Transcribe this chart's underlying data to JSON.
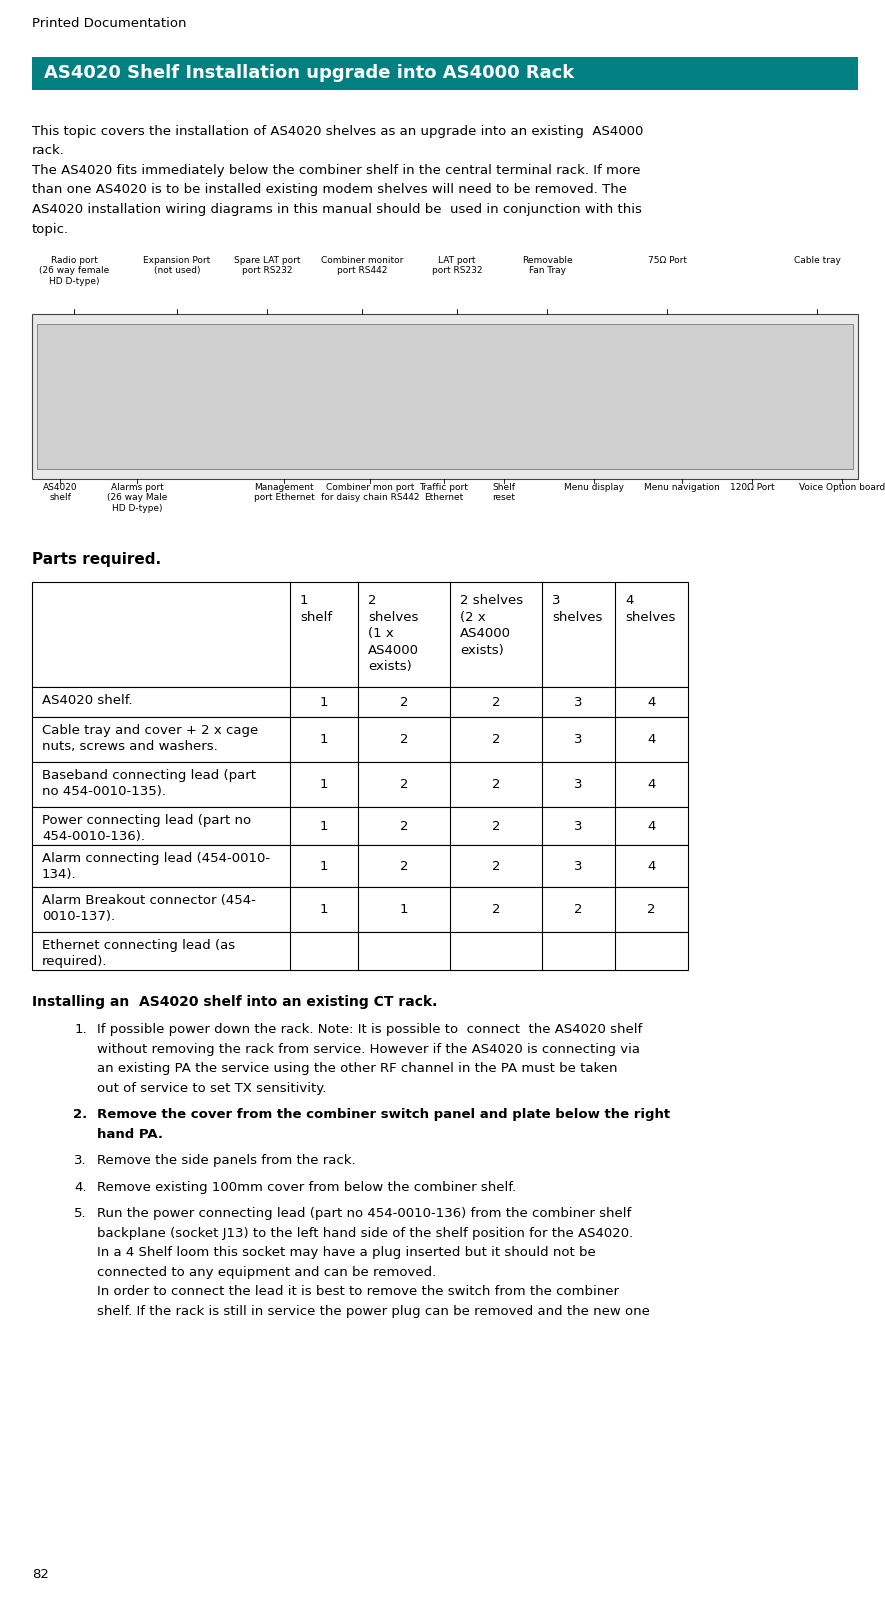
{
  "page_label": "Printed Documentation",
  "page_number": "82",
  "title": "AS4020 Shelf Installation upgrade into AS4000 Rack",
  "title_bg_color": "#008080",
  "title_text_color": "#ffffff",
  "intro_lines": [
    "This topic covers the installation of AS4020 shelves as an upgrade into an existing  AS4000",
    "rack.",
    "The AS4020 fits immediately below the combiner shelf in the central terminal rack. If more",
    "than one AS4020 is to be installed existing modem shelves will need to be removed. The",
    "AS4020 installation wiring diagrams in this manual should be  used in conjunction with this",
    "topic."
  ],
  "parts_required_label": "Parts required.",
  "table_headers": [
    "",
    "1\nshelf",
    "2\nshelves\n(1 x\nAS4000\nexists)",
    "2 shelves\n(2 x\nAS4000\nexists)",
    "3\nshelves",
    "4\nshelves"
  ],
  "table_rows": [
    [
      "AS4020 shelf.",
      "1",
      "2",
      "2",
      "3",
      "4"
    ],
    [
      "Cable tray and cover + 2 x cage\nnuts, screws and washers.",
      "1",
      "2",
      "2",
      "3",
      "4"
    ],
    [
      "Baseband connecting lead (part\nno 454-0010-135).",
      "1",
      "2",
      "2",
      "3",
      "4"
    ],
    [
      "Power connecting lead (part no\n454-0010-136).",
      "1",
      "2",
      "2",
      "3",
      "4"
    ],
    [
      "Alarm connecting lead (454-0010-\n134).",
      "1",
      "2",
      "2",
      "3",
      "4"
    ],
    [
      "Alarm Breakout connector (454-\n0010-137).",
      "1",
      "1",
      "2",
      "2",
      "2"
    ],
    [
      "Ethernet connecting lead (as\nrequired).",
      "",
      "",
      "",
      "",
      ""
    ]
  ],
  "install_heading": "Installing an  AS4020 shelf into an existing CT rack.",
  "install_steps": [
    {
      "num": "1.",
      "bold": false,
      "lines": [
        "If possible power down the rack. Note: It is possible to  connect  the AS4020 shelf",
        "without removing the rack from service. However if the AS4020 is connecting via",
        "an existing PA the service using the other RF channel in the PA must be taken",
        "out of service to set TX sensitivity."
      ]
    },
    {
      "num": "2.",
      "bold": true,
      "lines": [
        "Remove the cover from the combiner switch panel and plate below the right",
        "hand PA."
      ]
    },
    {
      "num": "3.",
      "bold": false,
      "lines": [
        "Remove the side panels from the rack."
      ]
    },
    {
      "num": "4.",
      "bold": false,
      "lines": [
        "Remove existing 100mm cover from below the combiner shelf."
      ]
    },
    {
      "num": "5.",
      "bold": false,
      "lines": [
        "Run the power connecting lead (part no 454-0010-136) from the combiner shelf",
        "backplane (socket J13) to the left hand side of the shelf position for the AS4020.",
        "In a 4 Shelf loom this socket may have a plug inserted but it should not be",
        "connected to any equipment and can be removed.",
        "In order to connect the lead it is best to remove the switch from the combiner",
        "shelf. If the rack is still in service the power plug can be removed and the new one"
      ]
    }
  ],
  "diag_labels_top": [
    [
      0.42,
      "Radio port\n(26 way female\nHD D-type)"
    ],
    [
      1.45,
      "Expansion Port\n(not used)"
    ],
    [
      2.35,
      "Spare LAT port\nport RS232"
    ],
    [
      3.3,
      "Combiner monitor\nport RS442"
    ],
    [
      4.25,
      "LAT port\nport RS232"
    ],
    [
      5.15,
      "Removable\nFan Tray"
    ],
    [
      6.35,
      "75Ω Port"
    ],
    [
      7.85,
      "Cable tray"
    ]
  ],
  "diag_labels_bot": [
    [
      0.28,
      "AS4020\nshelf"
    ],
    [
      1.05,
      "Alarms port\n(26 way Male\nHD D-type)"
    ],
    [
      2.52,
      "Management\nport Ethernet"
    ],
    [
      3.38,
      "Combiner mon port\nfor daisy chain RS442"
    ],
    [
      4.12,
      "Traffic port\nEthernet"
    ],
    [
      4.72,
      "Shelf\nreset"
    ],
    [
      5.62,
      "Menu display"
    ],
    [
      6.5,
      "Menu navigation"
    ],
    [
      7.2,
      "120Ω Port"
    ],
    [
      8.1,
      "Voice Option board"
    ]
  ],
  "bg_color": "#ffffff",
  "text_color": "#000000",
  "font_size_body": 9.5,
  "font_size_title": 13,
  "font_size_label": 11,
  "font_size_diag": 6.5
}
